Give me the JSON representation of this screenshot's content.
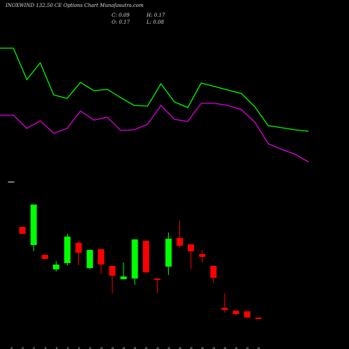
{
  "header": {
    "title": "INOXWIND 132.50 CE Options Chart Munafasutra.com",
    "close": "C: 0.09",
    "open": "O: 0.17",
    "high": "H: 0.17",
    "low": "L: 0.08"
  },
  "chart_data": [
    {
      "type": "line",
      "ylim": [
        0,
        4
      ],
      "series": [
        {
          "color": "#00ff00",
          "values": [
            3.62,
            3.62,
            2.72,
            3.2,
            2.28,
            2.18,
            2.64,
            2.4,
            2.44,
            2.2,
            1.98,
            1.96,
            2.6,
            2.08,
            1.92,
            2.62,
            2.52,
            2.42,
            2.32,
            1.94,
            1.4,
            1.34,
            1.28,
            1.24
          ]
        },
        {
          "color": "#e000e0",
          "values": [
            1.7,
            1.7,
            1.32,
            1.54,
            1.18,
            1.32,
            1.82,
            1.56,
            1.64,
            1.26,
            1.28,
            1.44,
            1.98,
            1.58,
            1.52,
            2.04,
            2.04,
            1.98,
            1.86,
            1.5,
            0.88,
            0.72,
            0.58,
            0.36
          ]
        }
      ]
    },
    {
      "type": "candlestick",
      "ylim": [
        0,
        4
      ],
      "up_color": "#00ff00",
      "down_color": "#ff0000",
      "flat_color": "#aaaaaa",
      "categories": [
        "12 Jan",
        "20 Jan",
        "22 Jan",
        "23 Jan",
        "27 Jan",
        "28 Jan",
        "29 Jan",
        "30 Jan",
        "01 Feb",
        "02 Feb",
        "03 Feb",
        "04 Feb",
        "05 Feb",
        "06 Feb",
        "09 Feb",
        "10 Feb",
        "11 Feb",
        "12 Feb",
        "13 Feb",
        "16 Feb",
        "17 Feb",
        "18 Feb",
        "19 Feb"
      ],
      "open": [
        4.2,
        2.9,
        2.38,
        2.1,
        1.68,
        1.86,
        2.44,
        1.72,
        2.26,
        1.78,
        1.4,
        1.42,
        2.5,
        1.42,
        1.76,
        2.58,
        2.4,
        2.12,
        1.78,
        0.58,
        0.5,
        0.48,
        0.3
      ],
      "close": [
        4.2,
        2.7,
        3.54,
        1.98,
        1.82,
        2.62,
        2.16,
        2.24,
        1.82,
        1.5,
        1.48,
        2.54,
        1.6,
        1.38,
        2.56,
        2.36,
        2.2,
        2.04,
        1.44,
        0.52,
        0.4,
        0.3,
        0.26
      ],
      "high": [
        4.2,
        2.9,
        3.54,
        2.1,
        1.92,
        2.7,
        2.5,
        2.24,
        2.26,
        1.78,
        1.88,
        2.54,
        2.5,
        1.42,
        2.74,
        3.08,
        2.4,
        2.24,
        1.78,
        1.0,
        0.5,
        0.48,
        0.3
      ],
      "low": [
        4.2,
        2.7,
        2.2,
        1.98,
        1.62,
        1.8,
        1.8,
        1.68,
        1.56,
        1.0,
        1.4,
        1.24,
        1.56,
        1.0,
        1.52,
        2.3,
        1.7,
        1.88,
        1.3,
        0.44,
        0.36,
        0.3,
        0.26
      ]
    }
  ]
}
